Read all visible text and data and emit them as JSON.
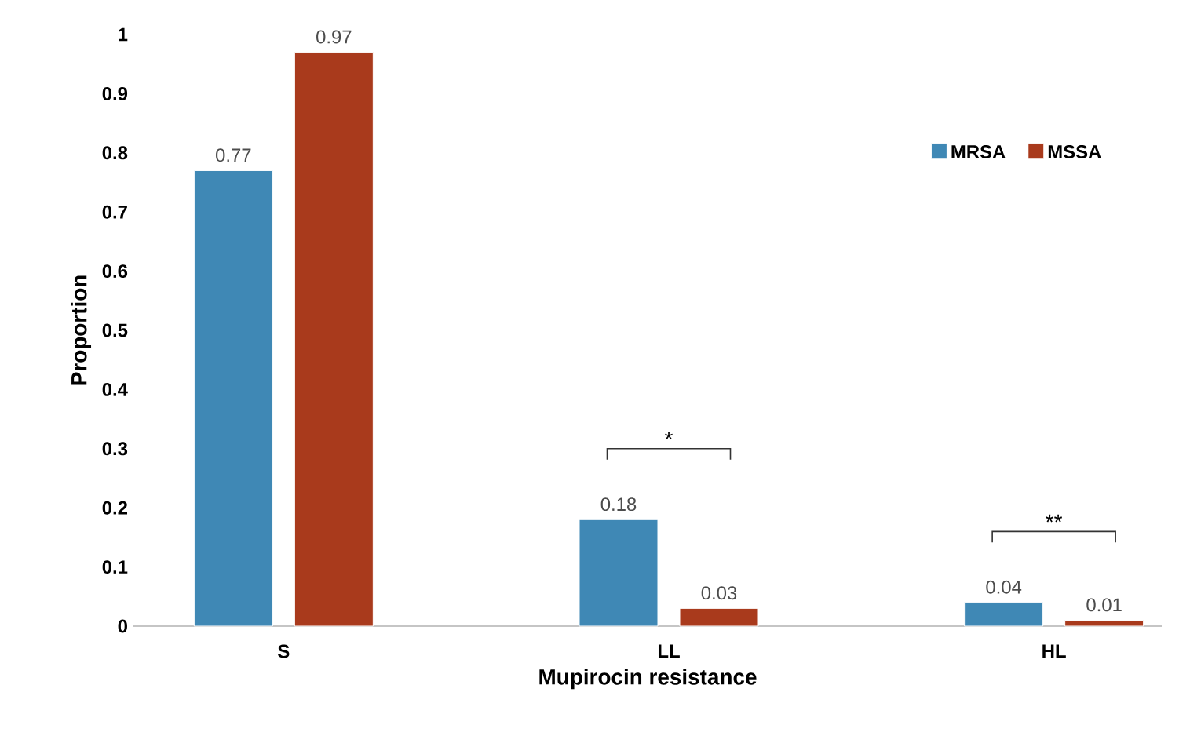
{
  "chart_data": {
    "type": "bar",
    "xlabel": "Mupirocin resistance",
    "ylabel": "Proportion",
    "categories": [
      "S",
      "LL",
      "HL"
    ],
    "series": [
      {
        "name": "MRSA",
        "color": "#3f88b5",
        "values": [
          0.77,
          0.18,
          0.04
        ]
      },
      {
        "name": "MSSA",
        "color": "#a93a1c",
        "values": [
          0.97,
          0.03,
          0.01
        ]
      }
    ],
    "ylim": [
      0,
      1
    ],
    "yticks": [
      0,
      0.1,
      0.2,
      0.3,
      0.4,
      0.5,
      0.6,
      0.7,
      0.8,
      0.9,
      1
    ],
    "data_labels": true,
    "legend": "top right",
    "annotations": [
      "*",
      "**"
    ]
  }
}
